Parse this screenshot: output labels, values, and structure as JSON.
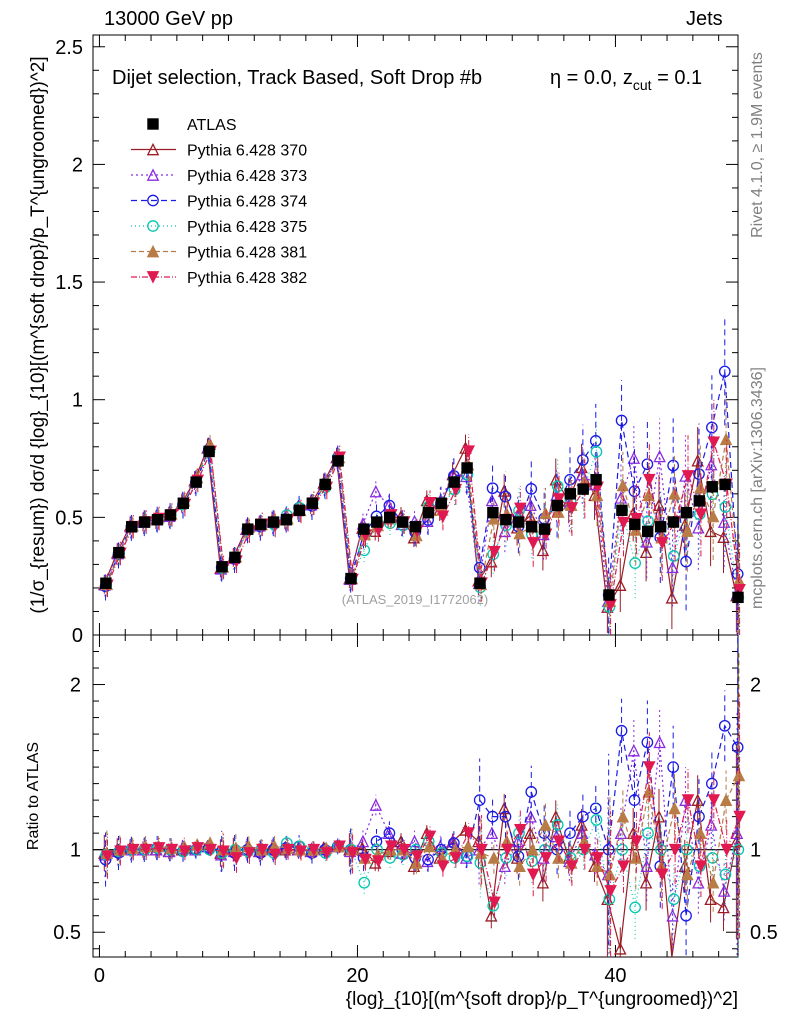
{
  "header": {
    "left": "13000 GeV pp",
    "right": "Jets"
  },
  "chart_data": {
    "type": "line",
    "title": "Dijet selection, Track Based, Soft Drop #b",
    "annotation": "η = 0.0, z",
    "annotation_sub": "cut",
    "annotation_tail": " = 0.1",
    "ylabel_main": "(1/σ_{resum}) dσ/d {log}_{10}[(m^{soft drop}/p_T^{ungroomed})^2]",
    "ylabel_ratio": "Ratio to ATLAS",
    "xlabel": "{log}_{10}[(m^{soft drop}/p_T^{ungroomed})^2]",
    "watermark": "(ATLAS_2019_I1772062)",
    "side_text_top": "Rivet 4.1.0, ≥ 1.9M events",
    "side_text_bottom": "mcplots.cern.ch [arXiv:1306.3436]",
    "xlim": [
      -0.5,
      49.5
    ],
    "ylim_main": [
      0,
      2.55
    ],
    "ylim_ratio": [
      0.35,
      2.3
    ],
    "x_ticks": [
      "0",
      "20",
      "40"
    ],
    "y_ticks_main": [
      "0",
      "0.5",
      "1",
      "1.5",
      "2",
      "2.5"
    ],
    "y_ticks_ratio": [
      "0.5",
      "1",
      "2"
    ],
    "atlas": {
      "name": "ATLAS",
      "x": [
        0.5,
        1.5,
        2.5,
        3.5,
        4.5,
        5.5,
        6.5,
        7.5,
        8.5,
        9.5,
        10.5,
        11.5,
        12.5,
        13.5,
        14.5,
        15.5,
        16.5,
        17.5,
        18.5,
        19.5,
        20.5,
        21.5,
        22.5,
        23.5,
        24.5,
        25.5,
        26.5,
        27.5,
        28.5,
        29.5,
        30.5,
        31.5,
        32.5,
        33.5,
        34.5,
        35.5,
        36.5,
        37.5,
        38.5,
        39.5,
        40.5,
        41.5,
        42.5,
        43.5,
        44.5,
        45.5,
        46.5,
        47.5,
        48.5,
        49.5
      ],
      "y": [
        0.22,
        0.35,
        0.46,
        0.48,
        0.49,
        0.51,
        0.56,
        0.65,
        0.78,
        0.29,
        0.33,
        0.45,
        0.47,
        0.48,
        0.49,
        0.53,
        0.56,
        0.64,
        0.74,
        0.24,
        0.45,
        0.48,
        0.5,
        0.48,
        0.46,
        0.52,
        0.56,
        0.65,
        0.71,
        0.22,
        0.52,
        0.49,
        0.48,
        0.46,
        0.45,
        0.55,
        0.6,
        0.62,
        0.66,
        0.17,
        0.53,
        0.47,
        0.44,
        0.46,
        0.48,
        0.52,
        0.57,
        0.63,
        0.64,
        0.16
      ]
    },
    "series": [
      {
        "name": "Pythia 6.428 370",
        "color": "#9a1c25",
        "marker": "triangle-open",
        "dash": "",
        "err": 0.04,
        "ratio": [
          0.98,
          1,
          1.01,
          1,
          1,
          0.99,
          1,
          1.01,
          1.02,
          0.98,
          1,
          1,
          0.99,
          1.01,
          1,
          1,
          0.99,
          1.01,
          1.02,
          1,
          1.01,
          0.92,
          0.99,
          1.05,
          0.9,
          1.1,
          0.95,
          1.05,
          1.12,
          1.05,
          0.6,
          1.25,
          0.95,
          1.1,
          0.8,
          1.2,
          0.95,
          1.15,
          0.9,
          0.7,
          0.4,
          1.1,
          0.8,
          1.2,
          0.33,
          0.9,
          1.3,
          0.7,
          0.65,
          1.05
        ]
      },
      {
        "name": "Pythia 6.428 373",
        "color": "#8a2be2",
        "marker": "triangle-open",
        "dash": "2,3",
        "err": 0.05,
        "ratio": [
          0.97,
          0.99,
          1,
          1,
          1,
          0.99,
          1.01,
          1,
          1.02,
          0.97,
          0.99,
          1,
          0.99,
          1,
          1.01,
          1,
          0.99,
          1,
          1.02,
          0.99,
          1.05,
          1.27,
          1.1,
          0.98,
          1.05,
          0.93,
          1.02,
          1.05,
          0.95,
          1.0,
          1.1,
          0.9,
          1.05,
          1.2,
          0.95,
          1.08,
          0.93,
          1.1,
          0.97,
          0.85,
          1.1,
          1.6,
          0.9,
          1.65,
          0.6,
          1.3,
          0.8,
          1.15,
          0.75,
          1.1
        ]
      },
      {
        "name": "Pythia 6.428 374",
        "color": "#1a1ae6",
        "marker": "circle-open",
        "dash": "6,4",
        "err": 0.06,
        "ratio": [
          0.94,
          0.98,
          1,
          1,
          1.01,
          1,
          0.99,
          1,
          1.01,
          0.99,
          0.98,
          1,
          0.98,
          1,
          1.01,
          1.02,
          0.98,
          1,
          1.02,
          1,
          0.95,
          1.05,
          1.1,
          1.0,
          0.95,
          0.94,
          1.0,
          1.04,
          0.96,
          1.3,
          1.2,
          1.2,
          0.96,
          1.35,
          1.1,
          1.0,
          1.1,
          1.2,
          1.25,
          1.0,
          1.72,
          1.3,
          1.65,
          0.9,
          1.5,
          0.6,
          1.2,
          1.4,
          1.75,
          1.62
        ]
      },
      {
        "name": "Pythia 6.428 375",
        "color": "#00c8b0",
        "marker": "circle-open",
        "dash": "1,3",
        "err": 0.05,
        "ratio": [
          0.97,
          0.99,
          1,
          1,
          1.01,
          1,
          0.99,
          1,
          1.0,
          0.98,
          1,
          0.99,
          1,
          0.98,
          1.04,
          1.02,
          1,
          0.98,
          1.02,
          1,
          0.8,
          1.0,
          0.95,
          0.97,
          1.0,
          1.05,
          0.98,
          0.95,
          0.96,
          0.92,
          0.66,
          0.95,
          1.1,
          0.93,
          1.0,
          1.15,
          0.95,
          1.0,
          1.18,
          0.7,
          1.0,
          0.65,
          1.1,
          1.0,
          0.7,
          1.0,
          0.9,
          0.95,
          0.85,
          1.0
        ]
      },
      {
        "name": "Pythia 6.428 381",
        "color": "#b87c47",
        "marker": "triangle-filled",
        "dash": "5,3",
        "err": 0.05,
        "ratio": [
          0.98,
          1,
          1.01,
          1.02,
          1.02,
          1.01,
          1.02,
          1.03,
          1.04,
          1.0,
          1.01,
          1.02,
          1,
          1.02,
          1.01,
          1,
          1,
          1.01,
          1.02,
          1.0,
          0.95,
          0.97,
          1.0,
          1.0,
          0.92,
          1.02,
          0.95,
          1.0,
          1.02,
          0.98,
          0.95,
          1.05,
          0.9,
          1.0,
          1.15,
          0.95,
          0.92,
          1.05,
          0.9,
          0.85,
          1.2,
          0.95,
          1.35,
          0.9,
          1.25,
          0.85,
          1.1,
          0.8,
          1.3,
          1.45
        ]
      },
      {
        "name": "Pythia 6.428 382",
        "color": "#e01a50",
        "marker": "triangle-down-filled",
        "dash": "6,2,1,2",
        "err": 0.05,
        "ratio": [
          0.96,
          0.99,
          1,
          1,
          1.01,
          1,
          0.99,
          1.01,
          1.0,
          0.99,
          0.95,
          0.98,
          1,
          0.97,
          1,
          0.99,
          1,
          0.98,
          1.02,
          0.98,
          0.94,
          0.93,
          1.02,
          1.0,
          0.96,
          1.08,
          0.9,
          0.95,
          1.1,
          1.0,
          0.68,
          1.0,
          1.12,
          0.85,
          0.95,
          1.05,
          0.9,
          1.0,
          0.95,
          0.75,
          0.9,
          1.05,
          1.5,
          0.85,
          1.0,
          1.3,
          0.9,
          1.3,
          1.0,
          1.2
        ]
      }
    ]
  }
}
